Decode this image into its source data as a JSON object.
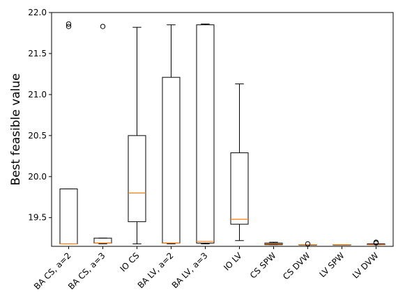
{
  "chart_data": {
    "type": "boxplot",
    "ylabel": "Best feasible value",
    "xlabel": "",
    "ylim": [
      19.15,
      22.0
    ],
    "yticks": [
      19.5,
      20.0,
      20.5,
      21.0,
      21.5,
      22.0
    ],
    "ytick_labels": [
      "19.5",
      "20.0",
      "20.5",
      "21.0",
      "21.5",
      "22.0"
    ],
    "grid": false,
    "colors": {
      "box": "#000000",
      "median": "#ff7f0e"
    },
    "categories": [
      "BA CS, a=2",
      "BA CS, a=3",
      "IO CS",
      "BA LV, a=2",
      "BA LV, a=3",
      "IO LV",
      "CS SPW",
      "CS DVW",
      "LV SPW",
      "LV DVW"
    ],
    "boxes": [
      {
        "label": "BA CS, a=2",
        "whislo": 19.18,
        "q1": 19.18,
        "med": 19.18,
        "q3": 19.85,
        "whishi": 19.85,
        "fliers": [
          21.83,
          21.86
        ]
      },
      {
        "label": "BA CS, a=3",
        "whislo": 19.18,
        "q1": 19.19,
        "med": 19.19,
        "q3": 19.25,
        "whishi": 19.25,
        "fliers": [
          21.83
        ]
      },
      {
        "label": "IO CS",
        "whislo": 19.18,
        "q1": 19.45,
        "med": 19.8,
        "q3": 20.5,
        "whishi": 21.82,
        "fliers": []
      },
      {
        "label": "BA LV, a=2",
        "whislo": 19.18,
        "q1": 19.19,
        "med": 19.19,
        "q3": 21.21,
        "whishi": 21.85,
        "fliers": []
      },
      {
        "label": "BA LV, a=3",
        "whislo": 19.18,
        "q1": 19.19,
        "med": 19.21,
        "q3": 21.85,
        "whishi": 21.86,
        "fliers": []
      },
      {
        "label": "IO LV",
        "whislo": 19.22,
        "q1": 19.42,
        "med": 19.48,
        "q3": 20.29,
        "whishi": 21.13,
        "fliers": []
      },
      {
        "label": "CS SPW",
        "whislo": 19.17,
        "q1": 19.17,
        "med": 19.18,
        "q3": 19.19,
        "whishi": 19.2,
        "fliers": []
      },
      {
        "label": "CS DVW",
        "whislo": 19.17,
        "q1": 19.17,
        "med": 19.17,
        "q3": 19.17,
        "whishi": 19.17,
        "fliers": [
          19.18
        ]
      },
      {
        "label": "LV SPW",
        "whislo": 19.17,
        "q1": 19.17,
        "med": 19.17,
        "q3": 19.17,
        "whishi": 19.17,
        "fliers": []
      },
      {
        "label": "LV DVW",
        "whislo": 19.17,
        "q1": 19.17,
        "med": 19.17,
        "q3": 19.18,
        "whishi": 19.18,
        "fliers": [
          19.19,
          19.2
        ]
      }
    ]
  }
}
